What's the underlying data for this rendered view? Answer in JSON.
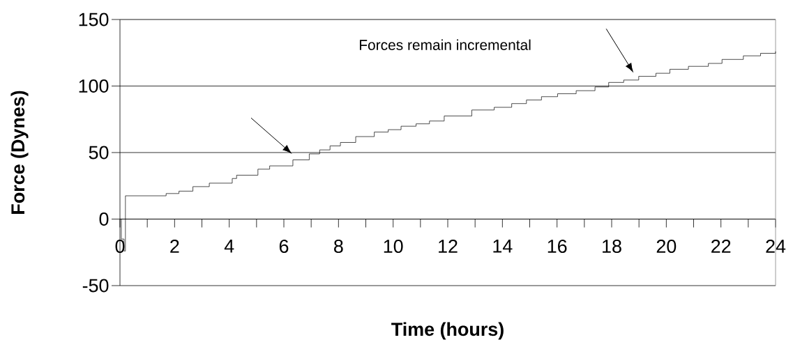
{
  "chart_data": {
    "type": "step",
    "xlabel": "Time (hours)",
    "ylabel": "Force (Dynes)",
    "annotations": [
      "Forces remain incremental"
    ],
    "x": [
      0,
      0.05,
      0.15,
      0.2,
      1.69,
      2.16,
      2.67,
      3.27,
      4.11,
      4.27,
      5.05,
      5.48,
      6.33,
      6.93,
      7.31,
      7.69,
      8.07,
      8.63,
      9.31,
      9.82,
      10.29,
      10.84,
      11.33,
      11.87,
      12.88,
      13.7,
      14.34,
      14.88,
      15.43,
      16.02,
      16.7,
      17.39,
      17.89,
      18.44,
      18.99,
      19.62,
      20.13,
      20.81,
      21.54,
      22.04,
      22.82,
      23.45,
      24
    ],
    "values": [
      0,
      -15,
      -24,
      17.5,
      19.2,
      21,
      24.4,
      27,
      30.5,
      33,
      37.5,
      40,
      44.5,
      49,
      52,
      55,
      57.6,
      62,
      65.4,
      67.2,
      69.8,
      71.6,
      73.7,
      77.5,
      82,
      84,
      86.8,
      89.5,
      92,
      94.2,
      96.5,
      99.3,
      102.7,
      104.5,
      107.3,
      109.6,
      112.6,
      114.8,
      117,
      120,
      122.7,
      124.6,
      126
    ],
    "color": "#000000",
    "xlim": [
      0,
      24
    ],
    "ylim": [
      -50,
      150
    ],
    "xticks": [
      0,
      {
        "value": 1,
        "label": null
      },
      2,
      {
        "value": 3,
        "label": null
      },
      4,
      {
        "value": 5,
        "label": null
      },
      6,
      {
        "value": 7,
        "label": null
      },
      8,
      {
        "value": 9,
        "label": null
      },
      10,
      {
        "value": 11,
        "label": null
      },
      12,
      {
        "value": 13,
        "label": null
      },
      14,
      {
        "value": 15,
        "label": null
      },
      16,
      {
        "value": 17,
        "label": null
      },
      18,
      {
        "value": 19,
        "label": null
      },
      20,
      {
        "value": 21,
        "label": null
      },
      22,
      {
        "value": 23,
        "label": null
      },
      24
    ],
    "yticks": [
      -50,
      0,
      50,
      100,
      150
    ],
    "grid": "y"
  }
}
